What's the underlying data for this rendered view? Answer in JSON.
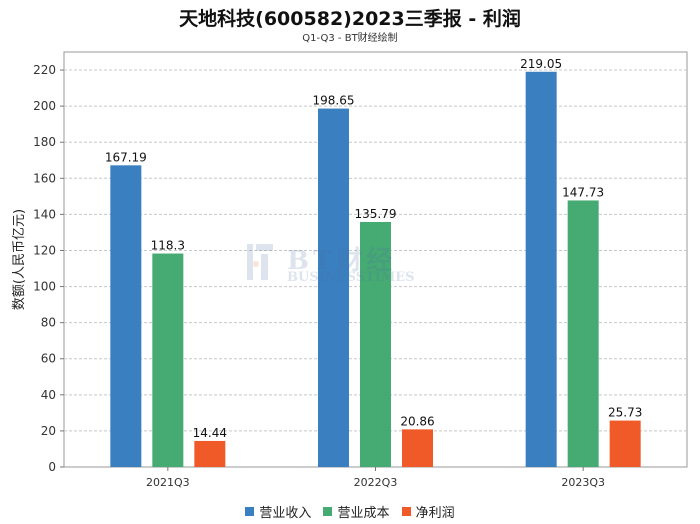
{
  "chart_data": {
    "type": "bar",
    "title": "天地科技(600582)2023三季报 - 利润",
    "subtitle": "Q1-Q3 - BT财经绘制",
    "xlabel": "",
    "ylabel": "数额(人民币亿元)",
    "ylim": [
      0,
      230
    ],
    "yticks": [
      "0",
      "20",
      "40",
      "60",
      "80",
      "100",
      "120",
      "140",
      "160",
      "180",
      "200",
      "220"
    ],
    "ytick_values": [
      0,
      20,
      40,
      60,
      80,
      100,
      120,
      140,
      160,
      180,
      200,
      220
    ],
    "categories": [
      "2021Q3",
      "2022Q3",
      "2023Q3"
    ],
    "grid": true,
    "legend_position": "bottom",
    "series": [
      {
        "name": "营业收入",
        "color": "#3a7fbf",
        "values": [
          167.19,
          198.65,
          219.05
        ],
        "labels": [
          "167.19",
          "198.65",
          "219.05"
        ]
      },
      {
        "name": "营业成本",
        "color": "#46aa73",
        "values": [
          118.3,
          135.79,
          147.73
        ],
        "labels": [
          "118.3",
          "135.79",
          "147.73"
        ]
      },
      {
        "name": "净利润",
        "color": "#f05a28",
        "values": [
          14.44,
          20.86,
          25.73
        ],
        "labels": [
          "14.44",
          "20.86",
          "25.73"
        ]
      }
    ]
  },
  "watermark": {
    "line1": "BT财经",
    "line2": "BUSINESSTIMES"
  }
}
